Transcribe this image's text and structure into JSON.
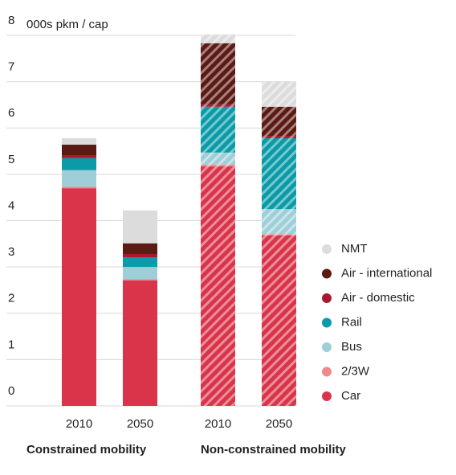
{
  "chart_data": {
    "type": "stacked_bar",
    "y_label": "000s pkm / cap",
    "categories": [
      "2010",
      "2050",
      "2010",
      "2050"
    ],
    "groups": [
      {
        "name": "Constrained mobility",
        "hatched": false
      },
      {
        "name": "Non-constrained mobility",
        "hatched": true
      }
    ],
    "series": [
      {
        "name": "Car",
        "color": "#d9344a",
        "values": [
          4.7,
          2.71,
          5.17,
          3.68
        ]
      },
      {
        "name": "2/3W",
        "color": "#f08a8a",
        "values": [
          0.03,
          0.03,
          0.04,
          0.03
        ]
      },
      {
        "name": "Bus",
        "color": "#9ecfd8",
        "values": [
          0.36,
          0.26,
          0.26,
          0.54
        ]
      },
      {
        "name": "Rail",
        "color": "#0a9aa8",
        "values": [
          0.26,
          0.21,
          0.99,
          1.53
        ]
      },
      {
        "name": "Air - domestic",
        "color": "#a8182e",
        "values": [
          0.05,
          0.07,
          0.05,
          0.05
        ]
      },
      {
        "name": "Air - international",
        "color": "#5c1a14",
        "values": [
          0.24,
          0.23,
          1.32,
          0.63
        ]
      },
      {
        "name": "NMT",
        "color": "#dcdcdc",
        "values": [
          0.14,
          0.71,
          0.19,
          0.54
        ]
      }
    ],
    "ylim": [
      0,
      8
    ],
    "yticks": [
      0,
      1,
      2,
      3,
      4,
      5,
      6,
      7,
      8
    ],
    "grid": true
  }
}
